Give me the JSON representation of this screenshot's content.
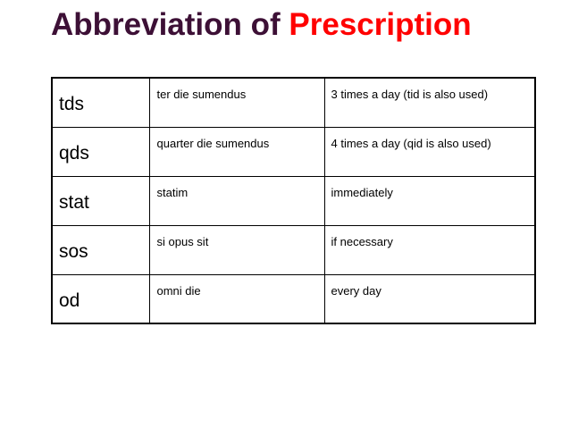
{
  "title": {
    "main": "Abbreviation of ",
    "accent": "Prescription"
  },
  "colors": {
    "title_main": "#3d1036",
    "title_accent": "#ff0000",
    "table_border": "#000000"
  },
  "rows": [
    {
      "abbr": "tds",
      "latin": "ter die sumendus",
      "meaning": "3 times a day (tid is also used)"
    },
    {
      "abbr": "qds",
      "latin": "quarter die sumendus",
      "meaning": "4 times a day (qid is also used)"
    },
    {
      "abbr": "stat",
      "latin": "statim",
      "meaning": "immediately"
    },
    {
      "abbr": "sos",
      "latin": "si opus sit",
      "meaning": "if necessary"
    },
    {
      "abbr": "od",
      "latin": "omni die",
      "meaning": "every day"
    }
  ]
}
